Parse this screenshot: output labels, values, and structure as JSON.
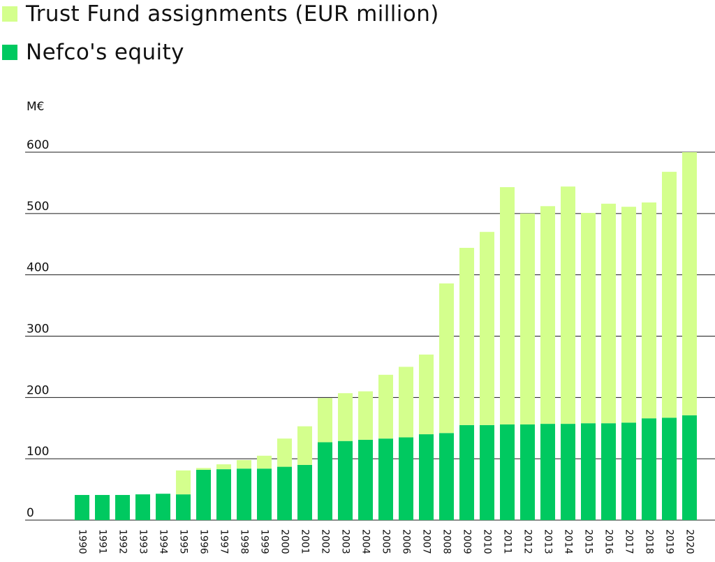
{
  "colors": {
    "trust_fund": "#d4ff8d",
    "equity": "#00c960",
    "gridline": "#1a1a1a",
    "text": "#111111"
  },
  "legend": [
    {
      "label": "Trust Fund assignments (EUR million)",
      "color": "#d4ff8d"
    },
    {
      "label": "Nefco's equity",
      "color": "#00c960"
    }
  ],
  "chart_data": {
    "type": "bar",
    "stacked": true,
    "unit_label": "M€",
    "ylim": [
      0,
      600
    ],
    "yticks": [
      0,
      100,
      200,
      300,
      400,
      500,
      600
    ],
    "grid": true,
    "legend_position": "top-left",
    "categories": [
      "1990",
      "1991",
      "1992",
      "1993",
      "1994",
      "1995",
      "1996",
      "1997",
      "1998",
      "1999",
      "2000",
      "2001",
      "2002",
      "2003",
      "2004",
      "2005",
      "2006",
      "2007",
      "2008",
      "2009",
      "2010",
      "2011",
      "2012",
      "2013",
      "2014",
      "2015",
      "2016",
      "2017",
      "2018",
      "2019",
      "2020"
    ],
    "series": [
      {
        "name": "Nefco's equity",
        "color": "#00c960",
        "values": [
          41,
          41,
          41,
          42,
          43,
          42,
          82,
          83,
          84,
          84,
          87,
          90,
          127,
          129,
          131,
          133,
          135,
          140,
          142,
          155,
          155,
          156,
          156,
          157,
          157,
          158,
          158,
          159,
          166,
          167,
          171
        ]
      },
      {
        "name": "Trust Fund assignments (EUR million)",
        "color": "#d4ff8d",
        "values": [
          0,
          0,
          0,
          0,
          0,
          39,
          3,
          8,
          14,
          21,
          46,
          63,
          72,
          78,
          79,
          104,
          115,
          130,
          244,
          289,
          315,
          387,
          344,
          355,
          387,
          343,
          358,
          352,
          352,
          401,
          429
        ]
      }
    ]
  }
}
